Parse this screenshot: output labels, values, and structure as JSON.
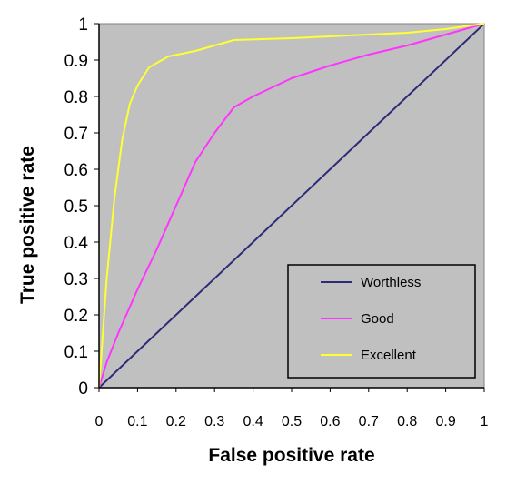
{
  "chart_data": {
    "type": "line",
    "title": "",
    "xlabel": "False positive rate",
    "ylabel": "True positive rate",
    "xlim": [
      0,
      1
    ],
    "ylim": [
      0,
      1
    ],
    "x_ticks": [
      "0",
      "0.1",
      "0.2",
      "0.3",
      "0.4",
      "0.5",
      "0.6",
      "0.7",
      "0.8",
      "0.9",
      "1"
    ],
    "y_ticks": [
      "0",
      "0.1",
      "0.2",
      "0.3",
      "0.4",
      "0.5",
      "0.6",
      "0.7",
      "0.8",
      "0.9",
      "1"
    ],
    "grid": false,
    "plot_background": "#c0c0c0",
    "legend_position": "bottom-right",
    "series": [
      {
        "name": "Worthless",
        "color": "#2b2b7a",
        "points": [
          [
            0,
            0
          ],
          [
            1,
            1
          ]
        ]
      },
      {
        "name": "Good",
        "color": "#ff33ff",
        "points": [
          [
            0,
            0
          ],
          [
            0.02,
            0.07
          ],
          [
            0.05,
            0.15
          ],
          [
            0.1,
            0.27
          ],
          [
            0.15,
            0.38
          ],
          [
            0.2,
            0.5
          ],
          [
            0.25,
            0.62
          ],
          [
            0.3,
            0.7
          ],
          [
            0.35,
            0.77
          ],
          [
            0.4,
            0.8
          ],
          [
            0.5,
            0.85
          ],
          [
            0.6,
            0.885
          ],
          [
            0.7,
            0.915
          ],
          [
            0.8,
            0.94
          ],
          [
            0.9,
            0.97
          ],
          [
            1,
            1
          ]
        ]
      },
      {
        "name": "Excellent",
        "color": "#ffff33",
        "points": [
          [
            0,
            0
          ],
          [
            0.02,
            0.3
          ],
          [
            0.04,
            0.52
          ],
          [
            0.06,
            0.68
          ],
          [
            0.08,
            0.78
          ],
          [
            0.1,
            0.83
          ],
          [
            0.13,
            0.88
          ],
          [
            0.18,
            0.91
          ],
          [
            0.25,
            0.925
          ],
          [
            0.3,
            0.94
          ],
          [
            0.35,
            0.955
          ],
          [
            0.5,
            0.96
          ],
          [
            0.6,
            0.965
          ],
          [
            0.8,
            0.975
          ],
          [
            0.9,
            0.985
          ],
          [
            1,
            1
          ]
        ]
      }
    ]
  }
}
